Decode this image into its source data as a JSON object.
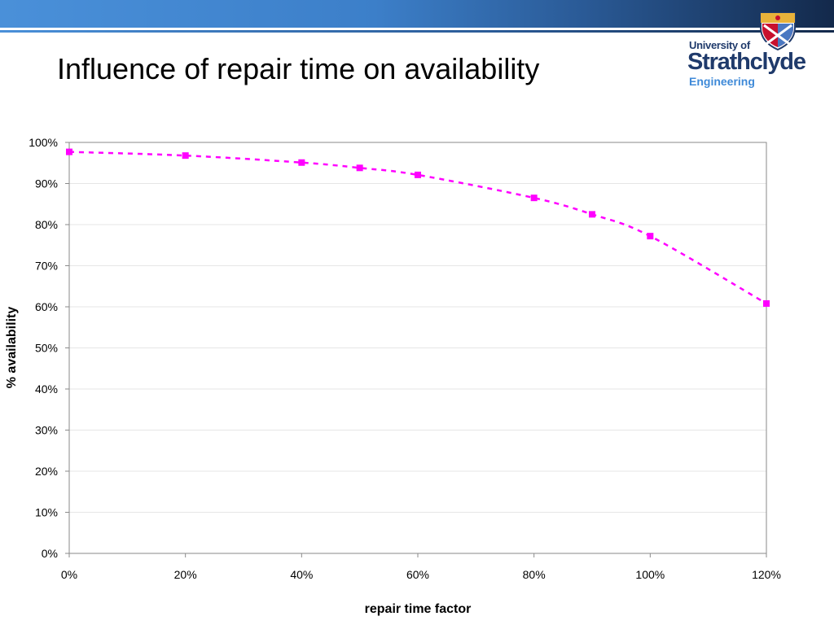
{
  "slide": {
    "title": "Influence of repair time on availability"
  },
  "logo": {
    "line1": "University of",
    "line2": "Strathclyde",
    "line3": "Engineering",
    "shield_icon": "university-crest-icon"
  },
  "colors": {
    "series": "#ff00ff",
    "band_light": "#4a90d9",
    "band_dark": "#13294b",
    "logo_navy": "#1f3a6b",
    "logo_blue": "#3f8ad8"
  },
  "chart_data": {
    "type": "scatter",
    "title": "",
    "xlabel": "repair time factor",
    "ylabel": "% availability",
    "xlim": [
      0,
      120
    ],
    "ylim": [
      0,
      100
    ],
    "x_ticks": [
      "0%",
      "20%",
      "40%",
      "60%",
      "80%",
      "100%",
      "120%"
    ],
    "y_ticks": [
      "0%",
      "10%",
      "20%",
      "30%",
      "40%",
      "50%",
      "60%",
      "70%",
      "80%",
      "90%",
      "100%"
    ],
    "grid": true,
    "legend": "none",
    "series": [
      {
        "x": [
          0,
          20,
          40,
          50,
          60,
          80,
          90,
          100,
          120
        ],
        "y": [
          97.7,
          96.8,
          95.1,
          93.8,
          92.1,
          86.5,
          82.5,
          77.2,
          60.8
        ],
        "style": "dashed line with square markers"
      }
    ]
  }
}
